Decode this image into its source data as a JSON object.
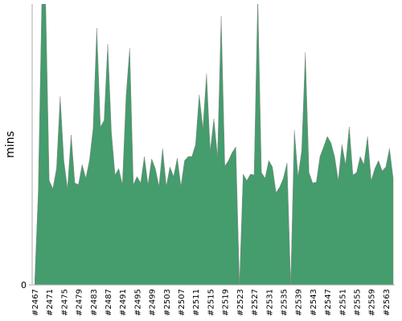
{
  "chart_data": {
    "type": "area",
    "y_label": "mins",
    "color": "#459c6c",
    "categories": [
      "#2467",
      null,
      null,
      null,
      "#2471",
      null,
      null,
      null,
      "#2475",
      null,
      null,
      null,
      "#2479",
      null,
      null,
      null,
      "#2483",
      null,
      null,
      null,
      "#2487",
      null,
      null,
      null,
      "#2491",
      null,
      null,
      null,
      "#2495",
      null,
      null,
      null,
      "#2499",
      null,
      null,
      null,
      "#2503",
      null,
      null,
      null,
      "#2507",
      null,
      null,
      null,
      "#2511",
      null,
      null,
      null,
      "#2515",
      null,
      null,
      null,
      "#2519",
      null,
      null,
      null,
      "#2523",
      null,
      null,
      null,
      "#2527",
      null,
      null,
      null,
      "#2531",
      null,
      null,
      null,
      "#2535",
      null,
      null,
      null,
      "#2539",
      null,
      null,
      null,
      "#2543",
      null,
      null,
      null,
      "#2547",
      null,
      null,
      null,
      "#2551",
      null,
      null,
      null,
      "#2555",
      null,
      null,
      null,
      "#2559",
      null,
      null,
      null,
      "#2563",
      null,
      null
    ],
    "values": [
      0,
      115,
      360,
      360,
      130,
      120,
      145,
      235,
      155,
      120,
      187,
      127,
      125,
      150,
      133,
      155,
      195,
      320,
      197,
      205,
      300,
      190,
      137,
      145,
      125,
      235,
      295,
      125,
      135,
      127,
      160,
      125,
      157,
      145,
      123,
      170,
      123,
      147,
      135,
      158,
      123,
      155,
      160,
      160,
      175,
      237,
      195,
      263,
      167,
      207,
      160,
      335,
      148,
      155,
      165,
      172,
      0,
      138,
      130,
      138,
      137,
      360,
      140,
      133,
      155,
      147,
      115,
      122,
      133,
      152,
      0,
      193,
      135,
      167,
      290,
      140,
      127,
      128,
      160,
      172,
      185,
      177,
      160,
      130,
      175,
      150,
      197,
      137,
      140,
      160,
      150,
      185,
      130,
      145,
      155,
      142,
      147,
      170,
      133
    ],
    "ylim": [
      0,
      350
    ],
    "yticks": [
      0
    ]
  }
}
